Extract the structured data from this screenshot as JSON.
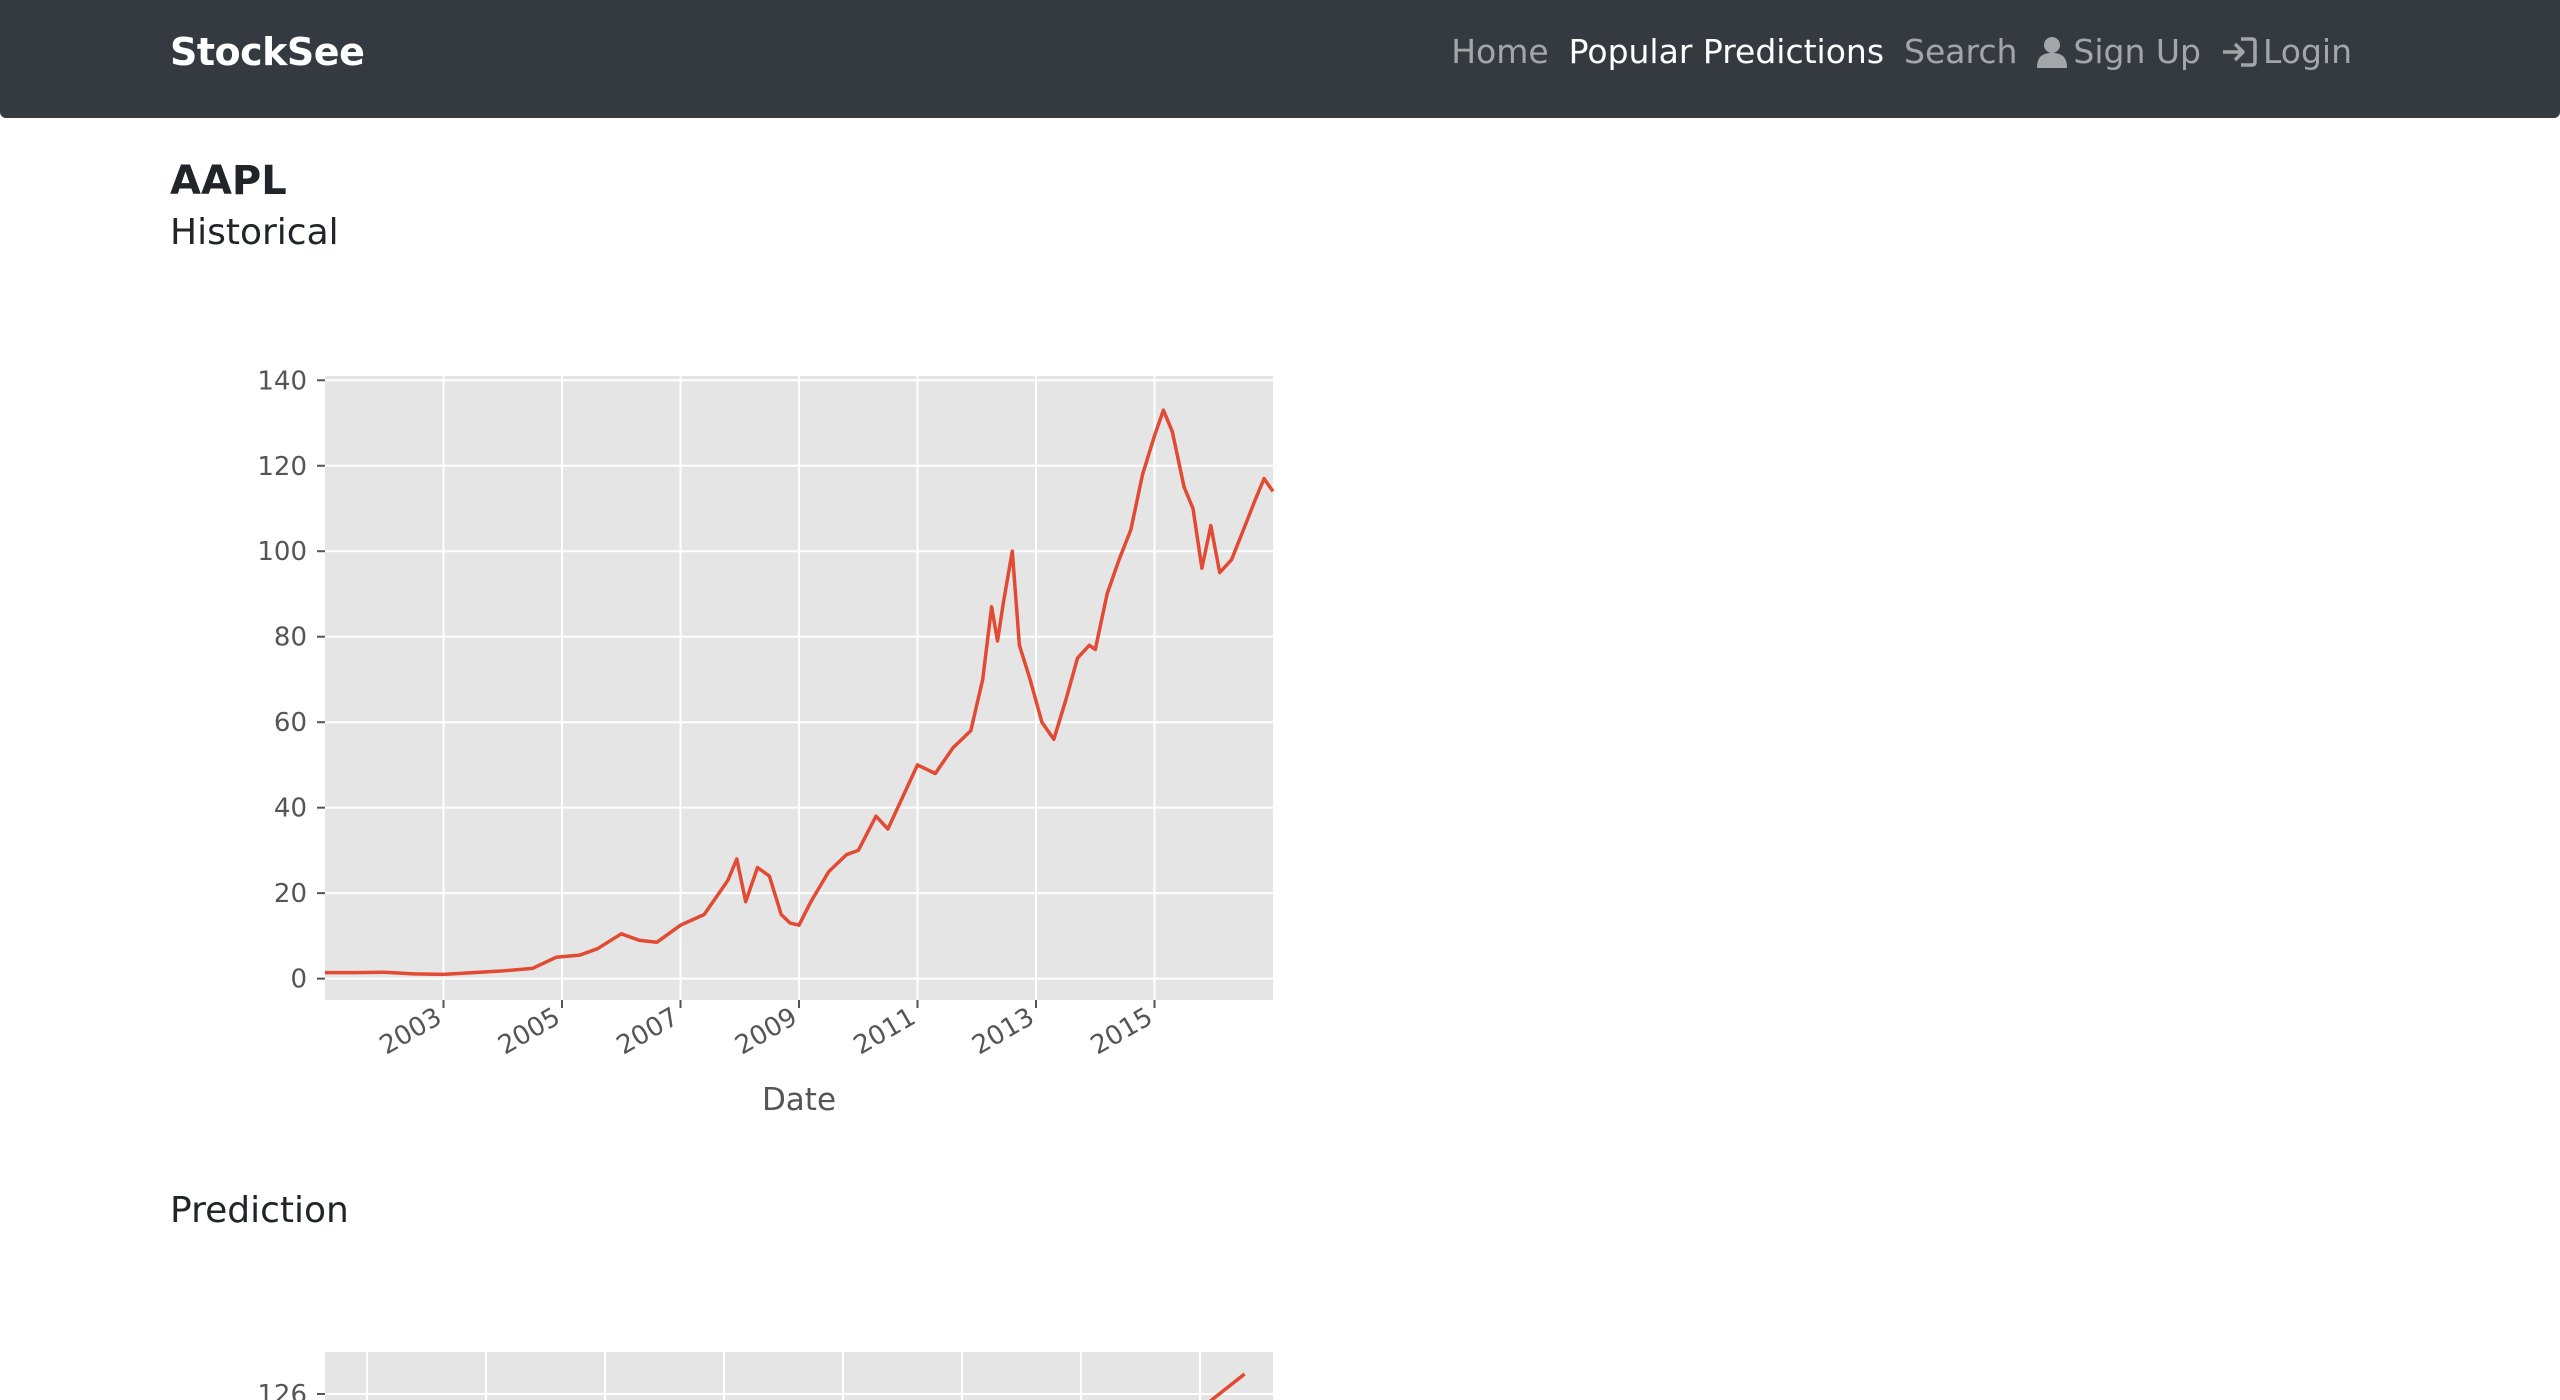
{
  "navbar": {
    "brand": "StockSee",
    "links": [
      {
        "label": "Home",
        "active": false
      },
      {
        "label": "Popular Predictions",
        "active": true
      },
      {
        "label": "Search",
        "active": false
      },
      {
        "label": "Sign Up",
        "icon": "user-icon",
        "active": false
      },
      {
        "label": "Login",
        "icon": "login-icon",
        "active": false
      }
    ]
  },
  "page": {
    "ticker": "AAPL",
    "historical_title": "Historical",
    "prediction_title": "Prediction"
  },
  "colors": {
    "navbar_bg": "#343a40",
    "line": "#e24a33",
    "plot_bg": "#e5e5e5",
    "grid": "#ffffff"
  },
  "chart_data": [
    {
      "type": "line",
      "title": "",
      "xlabel": "Date",
      "ylabel": "",
      "xlim": [
        2001.0,
        2017.0
      ],
      "ylim": [
        -5,
        141
      ],
      "yticks": [
        0,
        20,
        40,
        60,
        80,
        100,
        120,
        140
      ],
      "xticks": [
        "2003",
        "2005",
        "2007",
        "2009",
        "2011",
        "2013",
        "2015"
      ],
      "grid": true,
      "series": [
        {
          "x": [
            2001.0,
            2001.5,
            2002.0,
            2002.5,
            2003.0,
            2003.5,
            2004.0,
            2004.5,
            2004.9,
            2005.3,
            2005.6,
            2006.0,
            2006.3,
            2006.6,
            2007.0,
            2007.4,
            2007.8,
            2007.95,
            2008.1,
            2008.3,
            2008.5,
            2008.7,
            2008.85,
            2009.0,
            2009.2,
            2009.5,
            2009.8,
            2010.0,
            2010.3,
            2010.5,
            2010.8,
            2011.0,
            2011.3,
            2011.6,
            2011.9,
            2012.1,
            2012.25,
            2012.35,
            2012.45,
            2012.6,
            2012.72,
            2012.9,
            2013.1,
            2013.3,
            2013.5,
            2013.7,
            2013.9,
            2014.0,
            2014.2,
            2014.4,
            2014.6,
            2014.8,
            2015.0,
            2015.15,
            2015.3,
            2015.5,
            2015.65,
            2015.8,
            2015.95,
            2016.1,
            2016.3,
            2016.5,
            2016.7,
            2016.85,
            2017.0
          ],
          "y": [
            1.4,
            1.4,
            1.5,
            1.1,
            1.0,
            1.4,
            1.8,
            2.4,
            5.0,
            5.5,
            7.0,
            10.5,
            9.0,
            8.5,
            12.5,
            15.0,
            23.0,
            28.0,
            18.0,
            26.0,
            24.0,
            15.0,
            13.0,
            12.5,
            18.0,
            25.0,
            29.0,
            30.0,
            38.0,
            35.0,
            44.0,
            50.0,
            48.0,
            54.0,
            58.0,
            70.0,
            87.0,
            79.0,
            88.0,
            100.0,
            78.0,
            70.0,
            60.0,
            56.0,
            65.0,
            75.0,
            78.0,
            77.0,
            90.0,
            98.0,
            105.0,
            118.0,
            127.0,
            133.0,
            128.0,
            115.0,
            110.0,
            96.0,
            106.0,
            95.0,
            98.0,
            105.0,
            112.0,
            117.0,
            114.0
          ]
        }
      ]
    },
    {
      "type": "line",
      "title": "",
      "xlabel": "",
      "ylabel": "",
      "yticks": [
        126
      ],
      "grid": true,
      "series": [
        {
          "x": [
            0.93,
            0.97
          ],
          "y": [
            125.9,
            126.2
          ]
        }
      ]
    }
  ]
}
